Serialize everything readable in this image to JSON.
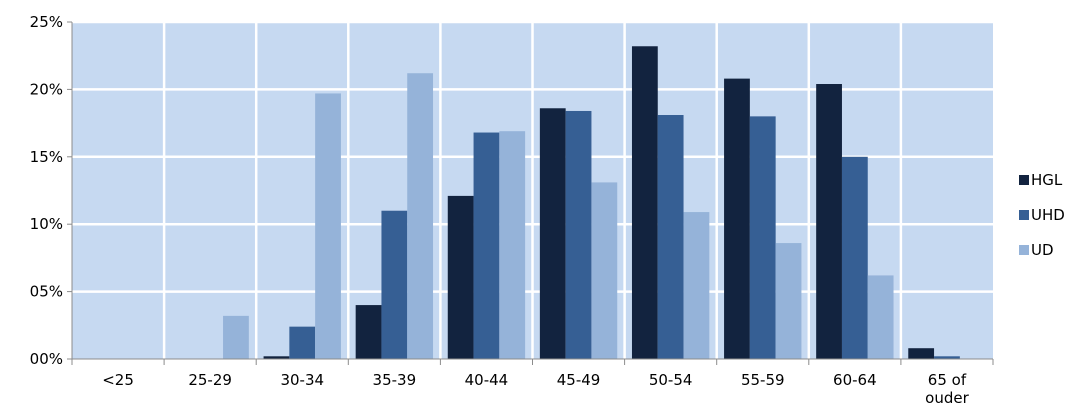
{
  "chart_data": {
    "type": "bar",
    "title": "",
    "xlabel": "",
    "ylabel": "",
    "categories": [
      [
        "<25"
      ],
      [
        "25-29"
      ],
      [
        "30-34"
      ],
      [
        "35-39"
      ],
      [
        "40-44"
      ],
      [
        "45-49"
      ],
      [
        "50-54"
      ],
      [
        "55-59"
      ],
      [
        "60-64"
      ],
      [
        "65 of",
        "ouder"
      ]
    ],
    "series": [
      {
        "name": "HGL",
        "color": "#12233f",
        "values": [
          0,
          0,
          0.2,
          4.0,
          12.1,
          18.6,
          23.2,
          20.8,
          20.4,
          0.8
        ]
      },
      {
        "name": "UHD",
        "color": "#365f94",
        "values": [
          0,
          0,
          2.4,
          11.0,
          16.8,
          18.4,
          18.1,
          18.0,
          15.0,
          0.2
        ]
      },
      {
        "name": "UD",
        "color": "#95b3d9",
        "values": [
          0,
          3.2,
          19.7,
          21.2,
          16.9,
          13.1,
          10.9,
          8.6,
          6.2,
          0
        ]
      }
    ],
    "ylim": [
      0,
      25
    ],
    "yticks": [
      0,
      5,
      10,
      15,
      20,
      25
    ],
    "ytick_labels": [
      "00%",
      "05%",
      "10%",
      "15%",
      "20%",
      "25%"
    ],
    "plot_background": "#c6d9f1",
    "grid": true,
    "grid_color": "#ffffff",
    "legend_position": "right"
  }
}
